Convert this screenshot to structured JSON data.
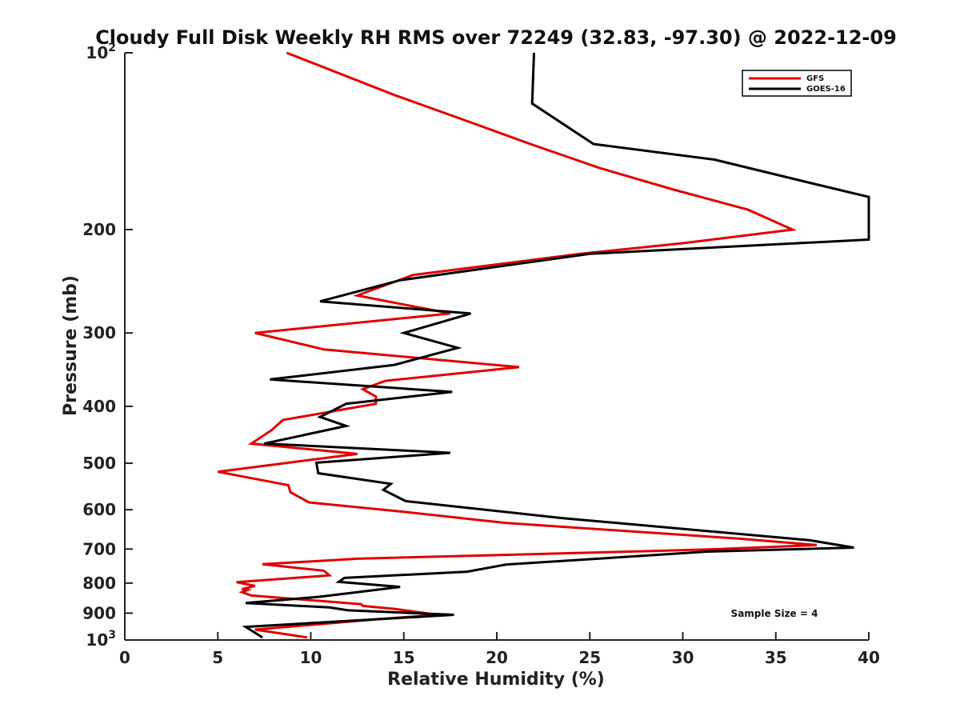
{
  "chart_data": {
    "type": "line",
    "title": "Cloudy Full Disk Weekly RH RMS over 72249 (32.83, -97.30) @ 2022-12-09",
    "xlabel": "Relative Humidity (%)",
    "ylabel": "Pressure (mb)",
    "xlim": [
      0,
      40
    ],
    "ylim": [
      100,
      1000
    ],
    "y_scale": "log",
    "y_reversed": true,
    "xticks": [
      "0",
      "5",
      "10",
      "15",
      "20",
      "25",
      "30",
      "35",
      "40"
    ],
    "yticks": [
      {
        "value": 100,
        "base": "10",
        "exp": "2"
      },
      {
        "value": 200,
        "label": "200"
      },
      {
        "value": 300,
        "label": "300"
      },
      {
        "value": 400,
        "label": "400"
      },
      {
        "value": 500,
        "label": "500"
      },
      {
        "value": 600,
        "label": "600"
      },
      {
        "value": 700,
        "label": "700"
      },
      {
        "value": 800,
        "label": "800"
      },
      {
        "value": 900,
        "label": "900"
      },
      {
        "value": 1000,
        "base": "10",
        "exp": "3"
      }
    ],
    "grid": false,
    "legend_position": "top-right",
    "annotation": "Sample Size = 4",
    "series": [
      {
        "name": "GFS",
        "color": "#e00000",
        "points": [
          [
            8.7,
            100
          ],
          [
            14.5,
            118
          ],
          [
            18.5,
            131
          ],
          [
            21.8,
            143
          ],
          [
            25.5,
            157
          ],
          [
            29.5,
            171
          ],
          [
            33.5,
            185
          ],
          [
            35.9,
            200
          ],
          [
            30,
            211
          ],
          [
            24.5,
            220
          ],
          [
            15.5,
            239
          ],
          [
            12.5,
            259
          ],
          [
            17.5,
            278
          ],
          [
            7,
            300
          ],
          [
            10.7,
            320
          ],
          [
            21.2,
            343
          ],
          [
            14,
            362
          ],
          [
            12.8,
            374
          ],
          [
            13.5,
            385
          ],
          [
            13.5,
            396
          ],
          [
            8.5,
            422
          ],
          [
            7.9,
            439
          ],
          [
            6.8,
            463
          ],
          [
            12.5,
            482
          ],
          [
            5,
            517
          ],
          [
            8.8,
            545
          ],
          [
            8.9,
            560
          ],
          [
            9.9,
            583
          ],
          [
            15,
            605
          ],
          [
            20.5,
            632
          ],
          [
            33,
            672
          ],
          [
            37.2,
            689
          ],
          [
            32,
            700
          ],
          [
            28,
            706
          ],
          [
            12.5,
            727
          ],
          [
            7.4,
            743
          ],
          [
            10.7,
            762
          ],
          [
            11,
            776
          ],
          [
            6,
            797
          ],
          [
            7,
            809
          ],
          [
            6.3,
            819
          ],
          [
            6.6,
            822
          ],
          [
            6.3,
            829
          ],
          [
            6.8,
            840
          ],
          [
            12.7,
            869
          ],
          [
            12.8,
            875
          ],
          [
            14.5,
            885
          ],
          [
            16.8,
            906
          ],
          [
            13.7,
            921
          ],
          [
            7,
            960
          ],
          [
            9.8,
            990
          ]
        ]
      },
      {
        "name": "GOES-16",
        "color": "#000000",
        "points": [
          [
            22,
            100
          ],
          [
            21.9,
            122
          ],
          [
            25.2,
            143
          ],
          [
            31.7,
            152
          ],
          [
            37,
            167
          ],
          [
            40,
            176
          ],
          [
            40,
            208
          ],
          [
            25,
            220
          ],
          [
            14.8,
            244
          ],
          [
            10.5,
            265
          ],
          [
            18.6,
            278
          ],
          [
            15,
            300
          ],
          [
            17.9,
            318
          ],
          [
            14.5,
            340
          ],
          [
            7.8,
            360
          ],
          [
            17.6,
            378
          ],
          [
            11.9,
            396
          ],
          [
            10.5,
            417
          ],
          [
            11.9,
            432
          ],
          [
            7.5,
            463
          ],
          [
            17.5,
            480
          ],
          [
            10.3,
            499
          ],
          [
            10.4,
            520
          ],
          [
            14.3,
            542
          ],
          [
            13.9,
            555
          ],
          [
            15.1,
            580
          ],
          [
            23.5,
            620
          ],
          [
            36.8,
            676
          ],
          [
            39.2,
            696
          ],
          [
            31.3,
            707
          ],
          [
            27.5,
            720
          ],
          [
            20.5,
            744
          ],
          [
            18.4,
            765
          ],
          [
            11.8,
            784
          ],
          [
            11.5,
            796
          ],
          [
            14.8,
            812
          ],
          [
            12.8,
            827
          ],
          [
            10.5,
            844
          ],
          [
            6.5,
            865
          ],
          [
            11,
            880
          ],
          [
            12,
            890
          ],
          [
            17.7,
            906
          ],
          [
            6.5,
            950
          ],
          [
            7.4,
            990
          ]
        ]
      }
    ]
  }
}
